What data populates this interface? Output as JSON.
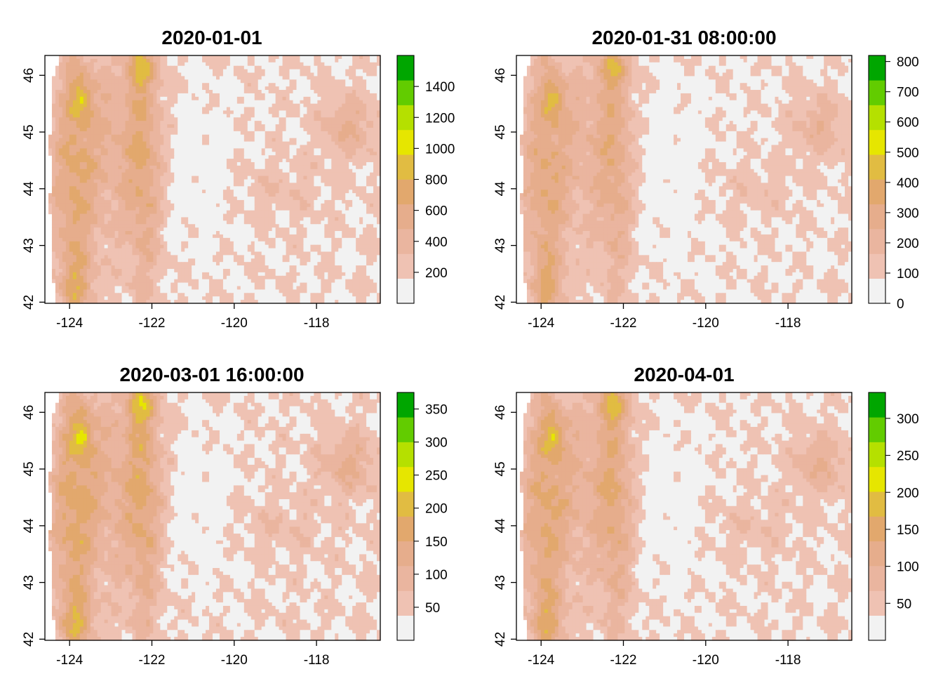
{
  "figure": {
    "x_ticks": [
      -124,
      -122,
      -120,
      -118
    ],
    "y_ticks": [
      42,
      43,
      44,
      45,
      46
    ],
    "extent": {
      "lon_min": -124.6,
      "lon_max": -116.45,
      "lat_min": 41.98,
      "lat_max": 46.35
    }
  },
  "colors": {
    "palette": [
      "#f2f2f2",
      "#efc2b3",
      "#eab59f",
      "#e6ad8c",
      "#e2a86d",
      "#e1bc42",
      "#e6e600",
      "#b5e000",
      "#62cc00",
      "#00a600"
    ]
  },
  "panels": [
    {
      "title": "2020-01-01",
      "scale_max": 1600,
      "legend_ticks": [
        200,
        400,
        600,
        800,
        1000,
        1200,
        1400
      ]
    },
    {
      "title": "2020-01-31 08:00:00",
      "scale_max": 820,
      "legend_ticks": [
        0,
        100,
        200,
        300,
        400,
        500,
        600,
        700,
        800
      ]
    },
    {
      "title": "2020-03-01 16:00:00",
      "scale_max": 375,
      "legend_ticks": [
        50,
        100,
        150,
        200,
        250,
        300,
        350
      ]
    },
    {
      "title": "2020-04-01",
      "scale_max": 335,
      "legend_ticks": [
        50,
        100,
        150,
        200,
        250,
        300
      ]
    }
  ]
}
